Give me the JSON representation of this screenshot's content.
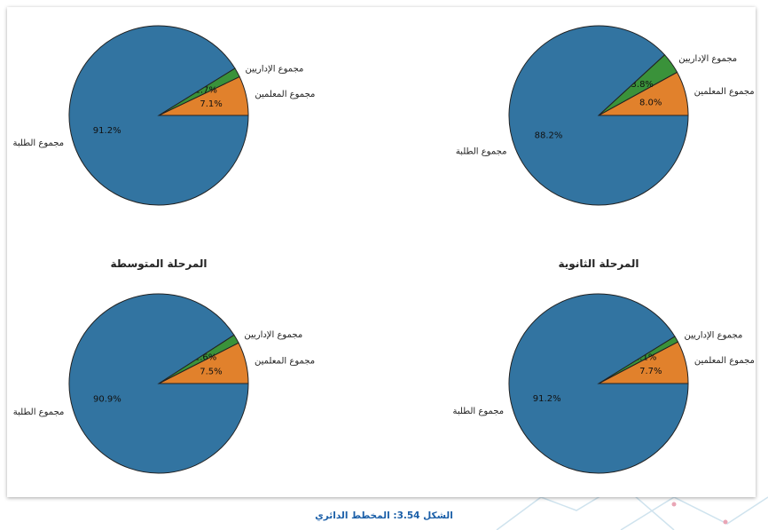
{
  "caption": "الشكل 3.54: المخطط الدائري",
  "colors": {
    "students": "#3274a1",
    "teachers": "#e1812c",
    "admins": "#3a923a",
    "edge": "#222222"
  },
  "chart_data": [
    {
      "type": "pie",
      "title": "",
      "labels": [
        "مجموع الطلبة",
        "مجموع المعلمين",
        "مجموع الإداريين"
      ],
      "values": [
        91.2,
        7.1,
        1.7
      ]
    },
    {
      "type": "pie",
      "title": "",
      "labels": [
        "مجموع الطلبة",
        "مجموع المعلمين",
        "مجموع الإداريين"
      ],
      "values": [
        88.2,
        8.0,
        3.8
      ]
    },
    {
      "type": "pie",
      "title": "المرحلة المتوسطة",
      "labels": [
        "مجموع الطلبة",
        "مجموع المعلمين",
        "مجموع الإداريين"
      ],
      "values": [
        90.9,
        7.5,
        1.6
      ]
    },
    {
      "type": "pie",
      "title": "المرحلة الثانوية",
      "labels": [
        "مجموع الطلبة",
        "مجموع المعلمين",
        "مجموع الإداريين"
      ],
      "values": [
        91.2,
        7.7,
        1.1
      ]
    }
  ]
}
